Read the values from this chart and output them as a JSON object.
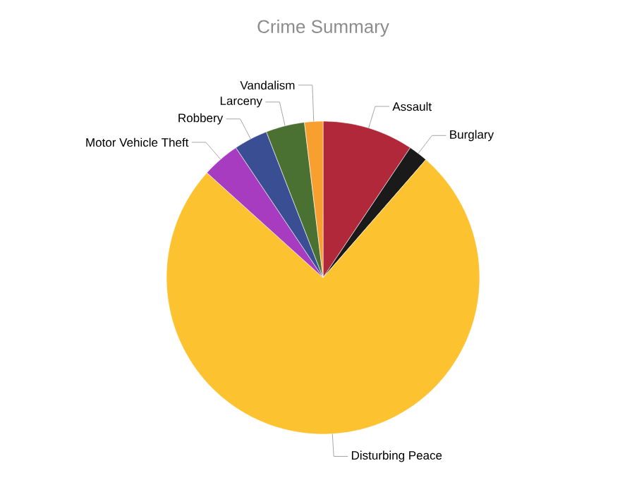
{
  "chart_data": {
    "type": "pie",
    "title": "Crime Summary",
    "categories": [
      "Assault",
      "Burglary",
      "Disturbing Peace",
      "Motor Vehicle Theft",
      "Robbery",
      "Larceny",
      "Vandalism"
    ],
    "values": [
      9.4,
      2.0,
      75.3,
      3.9,
      3.5,
      4.0,
      1.9
    ],
    "colors": [
      "#b0283a",
      "#1a1a1a",
      "#fdc230",
      "#a83cc0",
      "#3a4e94",
      "#4a7032",
      "#f7a030"
    ]
  }
}
